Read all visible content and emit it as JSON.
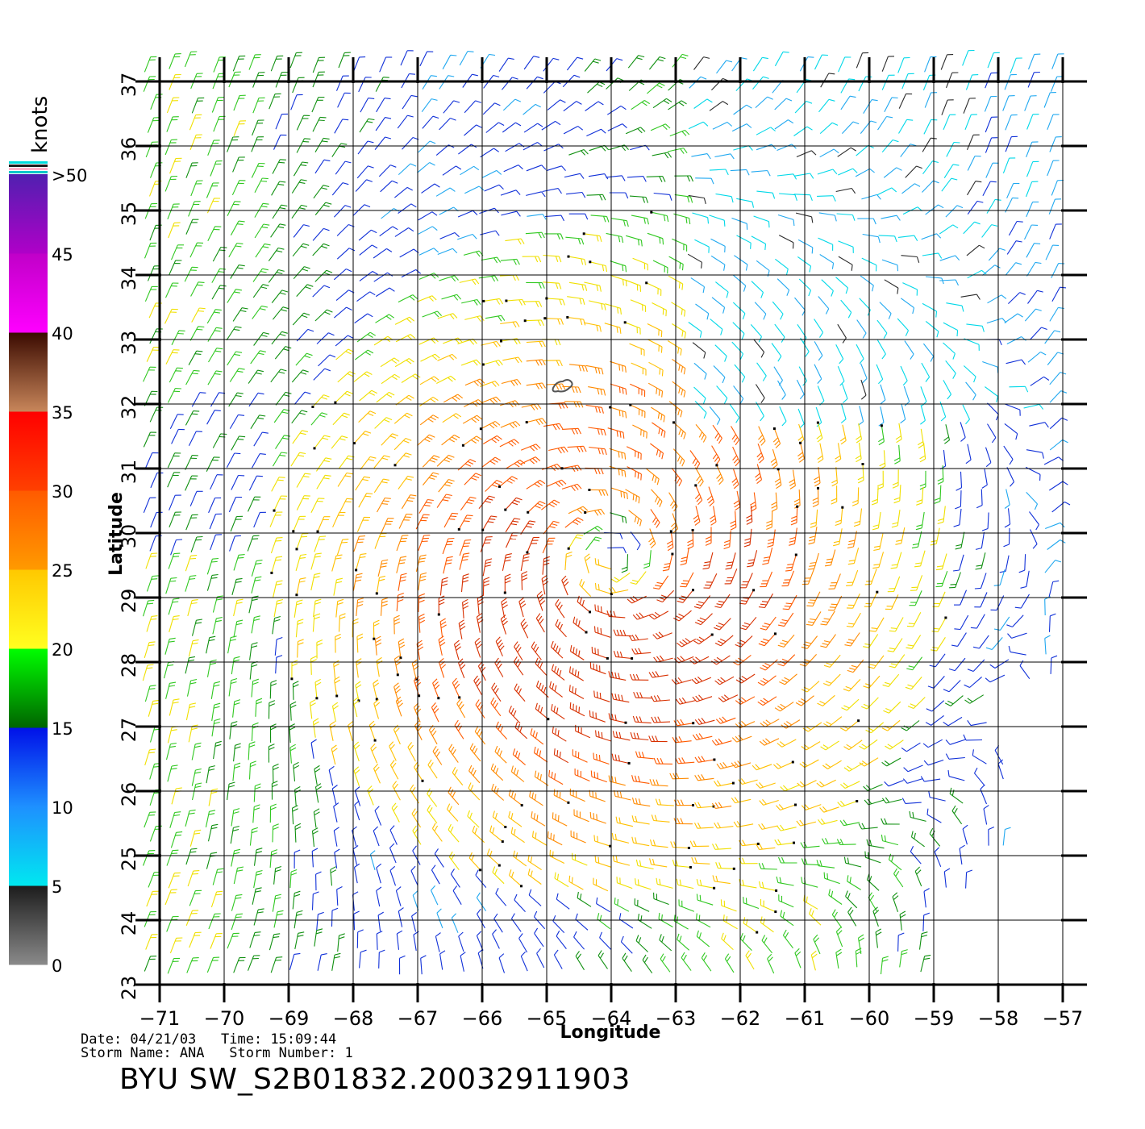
{
  "map": {
    "lon_range": [
      -71,
      -57
    ],
    "lat_range": [
      23,
      37
    ],
    "lon_ticks": [
      -71,
      -70,
      -69,
      -68,
      -67,
      -66,
      -65,
      -64,
      -63,
      -62,
      -61,
      -60,
      -59,
      -58,
      -57
    ],
    "lat_ticks": [
      23,
      24,
      25,
      26,
      27,
      28,
      29,
      30,
      31,
      32,
      33,
      34,
      35,
      36,
      37
    ],
    "lon_tick_labels": [
      "−71",
      "−70",
      "−69",
      "−68",
      "−67",
      "−66",
      "−65",
      "−64",
      "−63",
      "−62",
      "−61",
      "−60",
      "−59",
      "−58",
      "−57"
    ],
    "lat_tick_labels": [
      "23",
      "24",
      "25",
      "26",
      "27",
      "28",
      "29",
      "30",
      "31",
      "32",
      "33",
      "34",
      "35",
      "36",
      "37"
    ],
    "xlabel": "Longitude",
    "ylabel": "Latitude",
    "grid": true,
    "storm_center": {
      "lon": -64,
      "lat": 29.6
    },
    "wind_field": "cyclonic circulation of wind barbs; strongest winds 25-35 knots south and west of center",
    "island_outline": {
      "lon": -64.75,
      "lat": 32.3
    }
  },
  "colorbar": {
    "unit": "knots",
    "labels": [
      ">50",
      "45",
      "40",
      "35",
      "30",
      "25",
      "20",
      "15",
      "10",
      "5",
      "0"
    ],
    "bands": [
      {
        "from": 0,
        "to": 5,
        "colors": [
          "#8a8a8a",
          "#1c1c1c"
        ]
      },
      {
        "from": 5,
        "to": 10,
        "colors": [
          "#00e8f0",
          "#1e90ff"
        ]
      },
      {
        "from": 10,
        "to": 15,
        "colors": [
          "#1e90ff",
          "#0010e8"
        ]
      },
      {
        "from": 15,
        "to": 20,
        "colors": [
          "#006400",
          "#00ff00"
        ]
      },
      {
        "from": 20,
        "to": 25,
        "colors": [
          "#ffff20",
          "#ffc800"
        ]
      },
      {
        "from": 25,
        "to": 30,
        "colors": [
          "#ff9a00",
          "#ff5a00"
        ]
      },
      {
        "from": 30,
        "to": 35,
        "colors": [
          "#ff4000",
          "#ff0000"
        ]
      },
      {
        "from": 35,
        "to": 40,
        "colors": [
          "#c8865a",
          "#3a0a00"
        ]
      },
      {
        "from": 40,
        "to": 45,
        "colors": [
          "#ff00ff",
          "#c000c8"
        ]
      },
      {
        "from": 45,
        "to": 50,
        "colors": [
          "#b000c8",
          "#5020b0"
        ]
      }
    ]
  },
  "footer": {
    "line1": "Date: 04/21/03   Time: 15:09:44",
    "line2": "Storm Name: ANA   Storm Number: 1",
    "product_id": "BYU SW_S2B01832.20032911903"
  }
}
